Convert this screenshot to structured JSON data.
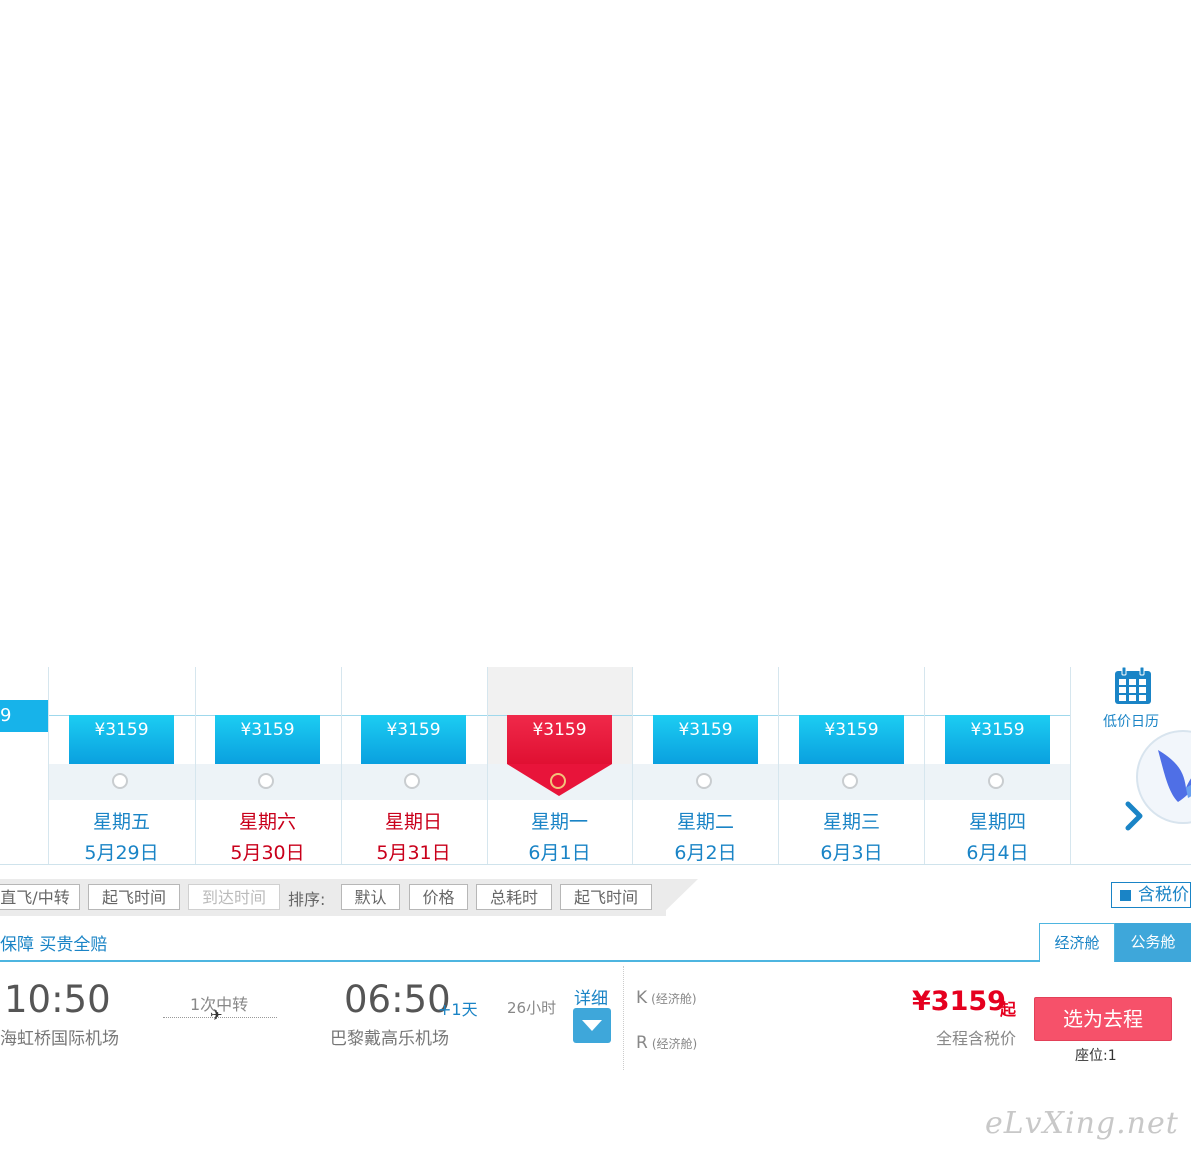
{
  "calendar": {
    "left_tab_price": "9",
    "days": [
      {
        "price": "¥3159",
        "weekday": "星期五",
        "date": "5月29日",
        "holiday": false,
        "selected": false
      },
      {
        "price": "¥3159",
        "weekday": "星期六",
        "date": "5月30日",
        "holiday": true,
        "selected": false
      },
      {
        "price": "¥3159",
        "weekday": "星期日",
        "date": "5月31日",
        "holiday": true,
        "selected": false
      },
      {
        "price": "¥3159",
        "weekday": "星期一",
        "date": "6月1日",
        "holiday": false,
        "selected": true
      },
      {
        "price": "¥3159",
        "weekday": "星期二",
        "date": "6月2日",
        "holiday": false,
        "selected": false
      },
      {
        "price": "¥3159",
        "weekday": "星期三",
        "date": "6月3日",
        "holiday": false,
        "selected": false
      },
      {
        "price": "¥3159",
        "weekday": "星期四",
        "date": "6月4日",
        "holiday": false,
        "selected": false
      }
    ],
    "low_price_calendar_label": "低价日历"
  },
  "filters": {
    "direct_transfer": "直飞/中转",
    "depart_time": "起飞时间",
    "arrive_time": "到达时间",
    "sort_label": "排序:",
    "sort_default": "默认",
    "sort_price": "价格",
    "sort_duration": "总耗时",
    "sort_depart": "起飞时间",
    "tax_toggle": "含税价"
  },
  "tabs": {
    "insurance": "保障 买贵全赔",
    "economy": "经济舱",
    "business": "公务舱"
  },
  "flight": {
    "depart_time": "10:50",
    "depart_airport": "海虹桥国际机场",
    "transfer": "1次中转",
    "arrive_time": "06:50",
    "plus_day": "+1天",
    "arrive_airport": "巴黎戴高乐机场",
    "duration": "26小时",
    "detail": "详细",
    "cabins": [
      {
        "code": "K",
        "class": "(经济舱)"
      },
      {
        "code": "R",
        "class": "(经济舱)"
      }
    ],
    "price": "¥3159",
    "price_suffix": "起",
    "price_note": "全程含税价",
    "select_button": "选为去程",
    "seats": "座位:1"
  },
  "watermark": "eLvXing.net",
  "colors": {
    "accent_blue": "#1a84c6",
    "price_red": "#e5001f",
    "select_pink": "#f6516a"
  }
}
